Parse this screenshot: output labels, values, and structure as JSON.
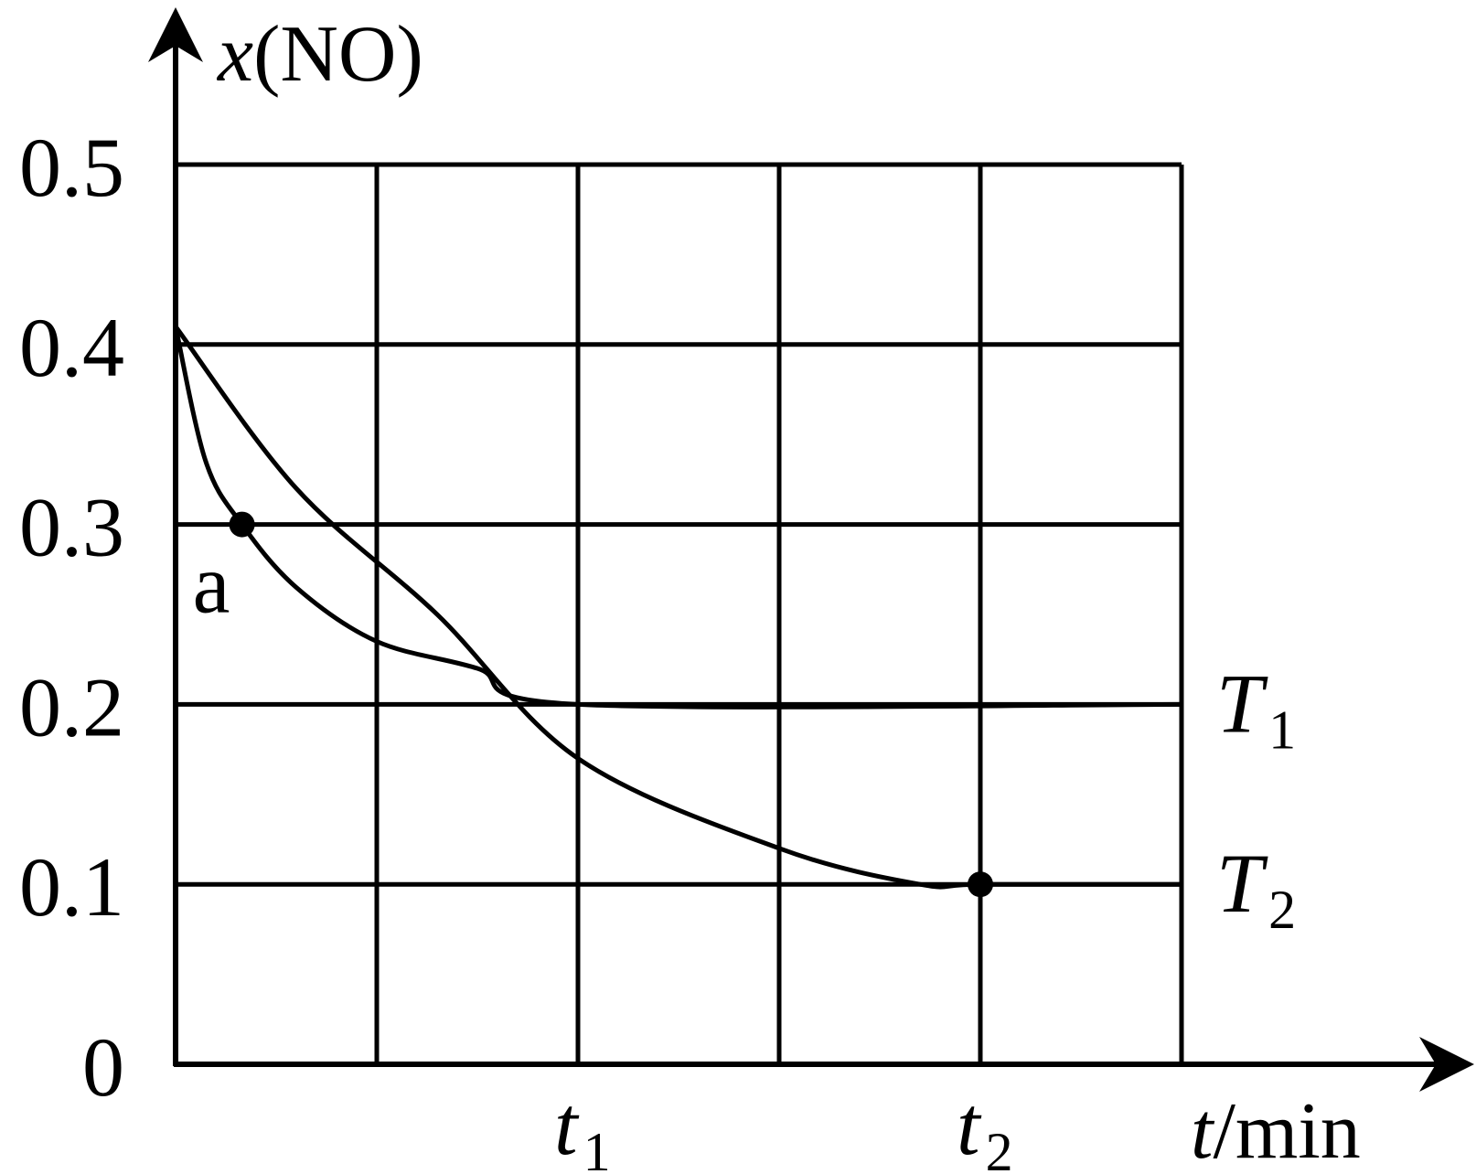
{
  "chart_data": {
    "type": "line",
    "title": "",
    "ylabel": {
      "var": "x",
      "rest": "(NO)"
    },
    "xlabel": {
      "var": "t",
      "rest": "/min"
    },
    "ylim": [
      0,
      0.5
    ],
    "xlim": [
      0,
      5
    ],
    "grid": true,
    "y_ticks": [
      "0",
      "0.1",
      "0.2",
      "0.3",
      "0.4",
      "0.5"
    ],
    "x_ticks": [
      {
        "x": 2,
        "var": "t",
        "sub": "1"
      },
      {
        "x": 4,
        "var": "t",
        "sub": "2"
      }
    ],
    "series": [
      {
        "name": {
          "var": "T",
          "sub": "1"
        },
        "label_y": 0.2,
        "points": [
          [
            0,
            0.41
          ],
          [
            0.15,
            0.335
          ],
          [
            0.33,
            0.3
          ],
          [
            0.6,
            0.265
          ],
          [
            1.0,
            0.235
          ],
          [
            1.5,
            0.22
          ],
          [
            2.0,
            0.2
          ],
          [
            5.0,
            0.2
          ]
        ]
      },
      {
        "name": {
          "var": "T",
          "sub": "2"
        },
        "label_y": 0.1,
        "points": [
          [
            0,
            0.41
          ],
          [
            0.6,
            0.32
          ],
          [
            1.3,
            0.25
          ],
          [
            2.0,
            0.17
          ],
          [
            3.0,
            0.12
          ],
          [
            3.7,
            0.1
          ],
          [
            4.0,
            0.1
          ],
          [
            5.0,
            0.1
          ]
        ]
      }
    ],
    "markers": [
      {
        "x": 0.33,
        "y": 0.3,
        "label": "a"
      },
      {
        "x": 4.0,
        "y": 0.1,
        "label": ""
      }
    ]
  }
}
